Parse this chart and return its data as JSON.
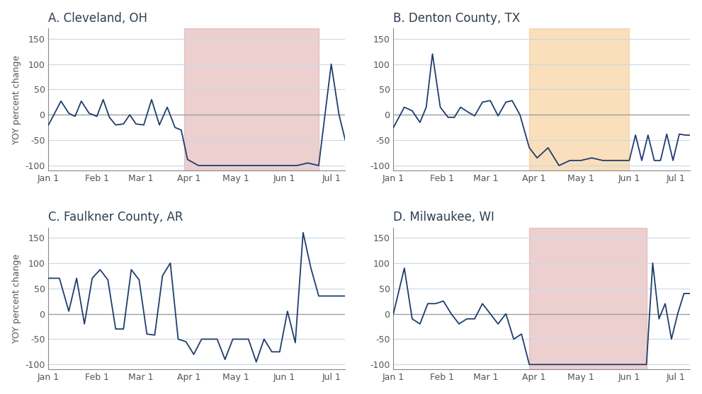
{
  "panels": [
    {
      "label": "A. Cleveland, OH",
      "shade_color": "#c97b7b",
      "shade_alpha": 0.35,
      "shade_start": 88,
      "shade_end": 174,
      "x": [
        1,
        9,
        14,
        18,
        22,
        27,
        32,
        36,
        40,
        44,
        49,
        53,
        57,
        62,
        67,
        72,
        77,
        82,
        86,
        90,
        97,
        104,
        111,
        118,
        125,
        132,
        139,
        146,
        153,
        160,
        167,
        174,
        178,
        182,
        187,
        191
      ],
      "y": [
        -20,
        27,
        3,
        -3,
        27,
        3,
        -3,
        30,
        -5,
        -20,
        -18,
        0,
        -18,
        -20,
        30,
        -20,
        15,
        -25,
        -30,
        -88,
        -100,
        -100,
        -100,
        -100,
        -100,
        -100,
        -100,
        -100,
        -100,
        -100,
        -95,
        -100,
        0,
        100,
        0,
        -50
      ]
    },
    {
      "label": "B. Denton County, TX",
      "shade_color": "#f5c07a",
      "shade_alpha": 0.5,
      "shade_start": 88,
      "shade_end": 152,
      "x": [
        1,
        8,
        13,
        18,
        22,
        26,
        31,
        36,
        40,
        44,
        49,
        53,
        58,
        63,
        68,
        73,
        77,
        82,
        88,
        93,
        100,
        107,
        114,
        121,
        128,
        135,
        142,
        149,
        152,
        156,
        160,
        164,
        168,
        172,
        176,
        180,
        184,
        188,
        191
      ],
      "y": [
        -25,
        15,
        8,
        -15,
        15,
        120,
        15,
        -5,
        -5,
        15,
        5,
        -2,
        25,
        28,
        -2,
        25,
        28,
        0,
        -65,
        -85,
        -65,
        -100,
        -90,
        -90,
        -85,
        -90,
        -90,
        -90,
        -90,
        -40,
        -90,
        -40,
        -90,
        -90,
        -38,
        -90,
        -38,
        -40,
        -40
      ]
    },
    {
      "label": "C. Faulkner County, AR",
      "shade_color": null,
      "shade_alpha": 0,
      "shade_start": null,
      "shade_end": null,
      "x": [
        1,
        8,
        14,
        19,
        24,
        29,
        34,
        39,
        44,
        49,
        54,
        59,
        64,
        69,
        74,
        79,
        84,
        89,
        94,
        99,
        104,
        109,
        114,
        119,
        124,
        129,
        134,
        139,
        144,
        149,
        154,
        159,
        164,
        169,
        174,
        178,
        182,
        187,
        191
      ],
      "y": [
        70,
        70,
        5,
        70,
        -20,
        70,
        87,
        67,
        -30,
        -30,
        87,
        67,
        -40,
        -42,
        75,
        100,
        -50,
        -55,
        -80,
        -50,
        -50,
        -50,
        -90,
        -50,
        -50,
        -50,
        -95,
        -50,
        -75,
        -75,
        5,
        -57,
        160,
        90,
        35,
        35,
        35,
        35,
        35
      ]
    },
    {
      "label": "D. Milwaukee, WI",
      "shade_color": "#c97b7b",
      "shade_alpha": 0.35,
      "shade_start": 88,
      "shade_end": 163,
      "x": [
        1,
        8,
        13,
        18,
        23,
        28,
        33,
        38,
        43,
        48,
        53,
        58,
        63,
        68,
        73,
        78,
        83,
        88,
        93,
        98,
        103,
        108,
        113,
        118,
        123,
        128,
        133,
        138,
        143,
        148,
        153,
        158,
        163,
        167,
        171,
        175,
        179,
        183,
        187,
        191
      ],
      "y": [
        0,
        90,
        -10,
        -20,
        20,
        20,
        25,
        0,
        -20,
        -10,
        -10,
        20,
        0,
        -20,
        0,
        -50,
        -40,
        -100,
        -100,
        -100,
        -100,
        -100,
        -100,
        -100,
        -100,
        -100,
        -100,
        -100,
        -100,
        -100,
        -100,
        -100,
        -100,
        100,
        -10,
        20,
        -50,
        0,
        40,
        40
      ]
    }
  ],
  "ylim": [
    -110,
    170
  ],
  "yticks": [
    -100,
    -50,
    0,
    50,
    100,
    150
  ],
  "xtick_positions": [
    1,
    32,
    60,
    91,
    121,
    152,
    182
  ],
  "xtick_labels": [
    "Jan 1",
    "Feb 1",
    "Mar 1",
    "Apr 1",
    "May 1",
    "Jun 1",
    "Jul 1"
  ],
  "ylabel": "YOY percent change",
  "line_color": "#1f3d6e",
  "line_width": 1.3,
  "bg_color": "#ffffff",
  "grid_color": "#c8d8e8",
  "axis_label_color": "#555555",
  "title_color": "#2c3e50",
  "title_fontsize": 12,
  "tick_fontsize": 9,
  "ylabel_fontsize": 9
}
